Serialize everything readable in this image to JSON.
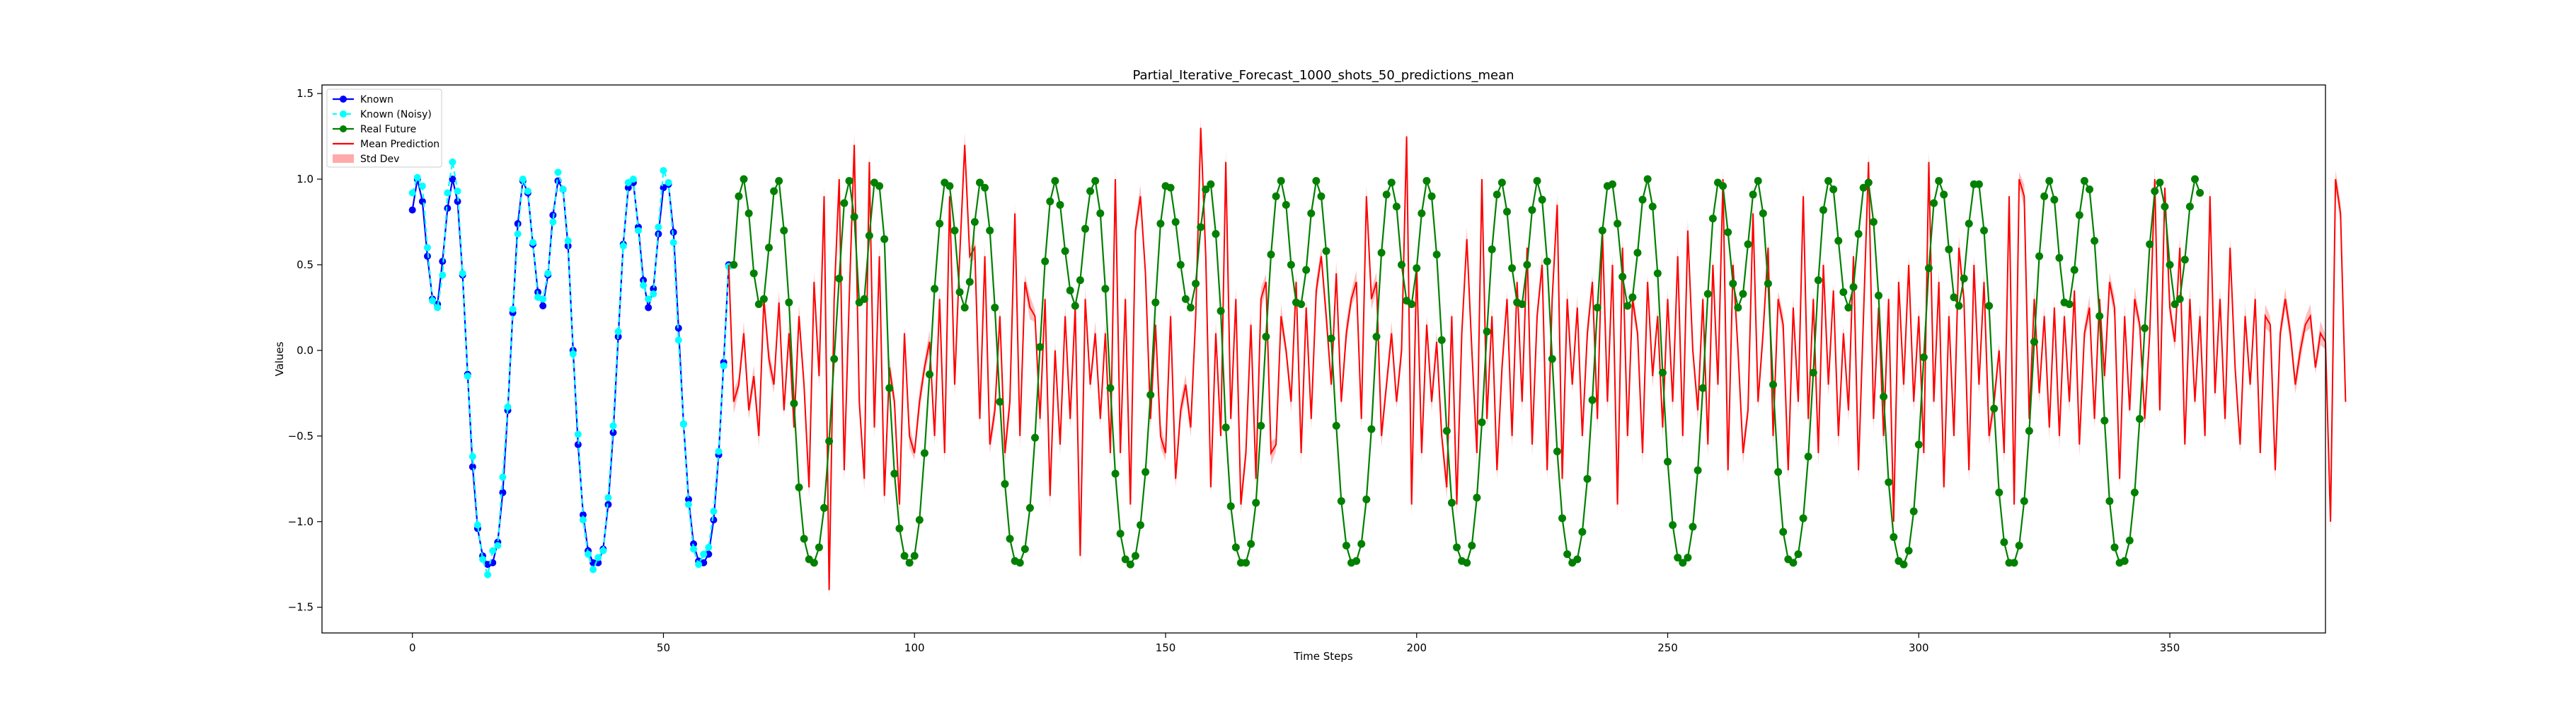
{
  "chart_data": {
    "type": "line",
    "title": "Partial_Iterative_Forecast_1000_shots_50_predictions_mean",
    "xlabel": "Time Steps",
    "ylabel": "Values",
    "xlim": [
      -18,
      381
    ],
    "ylim": [
      -1.65,
      1.55
    ],
    "xticks": [
      0,
      50,
      100,
      150,
      200,
      250,
      300,
      350
    ],
    "yticks": [
      -1.5,
      -1.0,
      -0.5,
      0.0,
      0.5,
      1.0,
      1.5
    ],
    "ytick_labels": [
      "−1.5",
      "−1.0",
      "−0.5",
      "0.0",
      "0.5",
      "1.0",
      "1.5"
    ],
    "grid": false,
    "legend_position": "top-left",
    "legend": [
      {
        "key": "known",
        "label": "Known"
      },
      {
        "key": "noisy",
        "label": "Known (Noisy)"
      },
      {
        "key": "future",
        "label": "Real Future"
      },
      {
        "key": "mean",
        "label": "Mean Prediction"
      },
      {
        "key": "std",
        "label": "Std Dev"
      }
    ],
    "colors": {
      "known": "#0000ff",
      "noisy": "#00ffff",
      "future": "#008000",
      "mean": "#ff0000",
      "std": "#ffaaaa"
    },
    "known": {
      "x_start": 0,
      "values": [
        0.82,
        1.0,
        0.87,
        0.55,
        0.3,
        0.27,
        0.52,
        0.83,
        1.0,
        0.87,
        0.44,
        -0.14,
        -0.68,
        -1.04,
        -1.2,
        -1.25,
        -1.24,
        -1.12,
        -0.83,
        -0.35,
        0.22,
        0.74,
        0.99,
        0.92,
        0.62,
        0.34,
        0.26,
        0.44,
        0.79,
        0.99,
        0.94,
        0.61,
        0.0,
        -0.55,
        -0.96,
        -1.17,
        -1.24,
        -1.24,
        -1.16,
        -0.9,
        -0.48,
        0.08,
        0.62,
        0.95,
        0.98,
        0.72,
        0.41,
        0.25,
        0.36,
        0.68,
        0.95,
        0.97,
        0.69,
        0.13,
        -0.43,
        -0.87,
        -1.13,
        -1.23,
        -1.24,
        -1.19,
        -0.99,
        -0.61,
        -0.07,
        0.5
      ]
    },
    "noisy": {
      "x_start": 0,
      "values": [
        0.92,
        1.01,
        0.96,
        0.6,
        0.29,
        0.25,
        0.44,
        0.92,
        1.1,
        0.93,
        0.45,
        -0.15,
        -0.62,
        -1.02,
        -1.22,
        -1.31,
        -1.17,
        -1.14,
        -0.74,
        -0.33,
        0.24,
        0.68,
        1.0,
        0.93,
        0.63,
        0.31,
        0.3,
        0.45,
        0.75,
        1.04,
        0.94,
        0.64,
        -0.02,
        -0.49,
        -0.99,
        -1.19,
        -1.28,
        -1.21,
        -1.17,
        -0.86,
        -0.44,
        0.11,
        0.61,
        0.98,
        1.0,
        0.7,
        0.38,
        0.3,
        0.33,
        0.72,
        1.05,
        0.98,
        0.63,
        0.06,
        -0.43,
        -0.9,
        -1.16,
        -1.25,
        -1.19,
        -1.15,
        -0.94,
        -0.59,
        -0.09,
        0.49
      ]
    },
    "future": {
      "x_start": 64,
      "values": [
        0.5,
        0.9,
        1.0,
        0.8,
        0.45,
        0.27,
        0.3,
        0.6,
        0.93,
        0.99,
        0.7,
        0.28,
        -0.31,
        -0.8,
        -1.1,
        -1.22,
        -1.24,
        -1.15,
        -0.92,
        -0.53,
        -0.05,
        0.42,
        0.86,
        0.99,
        0.78,
        0.28,
        0.3,
        0.67,
        0.98,
        0.96,
        0.65,
        -0.22,
        -0.72,
        -1.04,
        -1.2,
        -1.24,
        -1.2,
        -0.99,
        -0.6,
        -0.14,
        0.36,
        0.74,
        0.98,
        0.96,
        0.7,
        0.34,
        0.25,
        0.4,
        0.75,
        0.98,
        0.95,
        0.7,
        0.25,
        -0.3,
        -0.78,
        -1.1,
        -1.23,
        -1.24,
        -1.16,
        -0.92,
        -0.51,
        0.02,
        0.52,
        0.87,
        0.99,
        0.85,
        0.58,
        0.35,
        0.26,
        0.41,
        0.71,
        0.93,
        0.99,
        0.8,
        0.36,
        -0.22,
        -0.72,
        -1.07,
        -1.22,
        -1.25,
        -1.2,
        -1.02,
        -0.71,
        -0.26,
        0.28,
        0.74,
        0.96,
        0.95,
        0.75,
        0.5,
        0.3,
        0.25,
        0.39,
        0.72,
        0.94,
        0.97,
        0.68,
        0.23,
        -0.45,
        -0.91,
        -1.15,
        -1.24,
        -1.24,
        -1.13,
        -0.89,
        -0.44,
        0.08,
        0.56,
        0.9,
        0.99,
        0.85,
        0.5,
        0.28,
        0.27,
        0.47,
        0.8,
        0.99,
        0.9,
        0.58,
        0.07,
        -0.44,
        -0.88,
        -1.14,
        -1.24,
        -1.23,
        -1.13,
        -0.87,
        -0.46,
        0.08,
        0.57,
        0.91,
        0.98,
        0.84,
        0.5,
        0.29,
        0.27,
        0.48,
        0.8,
        0.99,
        0.9,
        0.56,
        0.06,
        -0.47,
        -0.89,
        -1.15,
        -1.23,
        -1.24,
        -1.14,
        -0.86,
        -0.42,
        0.11,
        0.59,
        0.91,
        0.98,
        0.81,
        0.48,
        0.28,
        0.27,
        0.5,
        0.82,
        0.99,
        0.88,
        0.52,
        -0.05,
        -0.59,
        -0.98,
        -1.19,
        -1.24,
        -1.22,
        -1.06,
        -0.75,
        -0.29,
        0.25,
        0.7,
        0.96,
        0.97,
        0.74,
        0.43,
        0.26,
        0.31,
        0.57,
        0.88,
        1.0,
        0.84,
        0.45,
        -0.13,
        -0.65,
        -1.02,
        -1.21,
        -1.24,
        -1.21,
        -1.03,
        -0.7,
        -0.22,
        0.33,
        0.77,
        0.98,
        0.96,
        0.69,
        0.39,
        0.25,
        0.33,
        0.62,
        0.91,
        0.99,
        0.8,
        0.39,
        -0.2,
        -0.71,
        -1.06,
        -1.22,
        -1.24,
        -1.19,
        -0.98,
        -0.62,
        -0.13,
        0.41,
        0.82,
        0.99,
        0.94,
        0.64,
        0.34,
        0.25,
        0.37,
        0.68,
        0.95,
        0.98,
        0.75,
        0.32,
        -0.27,
        -0.77,
        -1.09,
        -1.23,
        -1.25,
        -1.17,
        -0.94,
        -0.55,
        -0.04,
        0.48,
        0.86,
        0.99,
        0.91,
        0.59,
        0.31,
        0.26,
        0.42,
        0.74,
        0.97,
        0.97,
        0.7,
        0.26,
        -0.34,
        -0.83,
        -1.12,
        -1.24,
        -1.24,
        -1.14,
        -0.88,
        -0.47,
        0.05,
        0.55,
        0.9,
        0.99,
        0.88,
        0.54,
        0.28,
        0.27,
        0.47,
        0.79,
        0.99,
        0.94,
        0.64,
        0.2,
        -0.41,
        -0.88,
        -1.15,
        -1.24,
        -1.23,
        -1.11,
        -0.83,
        -0.4,
        0.13,
        0.62,
        0.93,
        0.98,
        0.84,
        0.5,
        0.27,
        0.3,
        0.53,
        0.84,
        1.0,
        0.92
      ]
    },
    "mean": {
      "x_start": 63,
      "values": [
        0.5,
        -0.3,
        -0.2,
        0.1,
        -0.35,
        -0.15,
        -0.5,
        0.3,
        -0.05,
        -0.2,
        0.28,
        -0.35,
        0.1,
        -0.45,
        0.2,
        -0.2,
        -0.8,
        0.4,
        -0.15,
        0.9,
        -1.4,
        0.3,
        1.0,
        -0.7,
        0.3,
        1.2,
        -0.3,
        -0.75,
        1.1,
        -0.45,
        0.55,
        -0.85,
        -0.1,
        -0.3,
        -0.9,
        0.1,
        -0.5,
        -0.6,
        -0.3,
        -0.1,
        0.05,
        -0.5,
        0.3,
        -0.6,
        0.9,
        -0.2,
        0.55,
        1.2,
        0.55,
        0.6,
        -0.4,
        0.55,
        -0.55,
        -0.35,
        0.2,
        -0.6,
        -0.3,
        0.8,
        -0.5,
        0.4,
        0.25,
        0.2,
        -0.4,
        0.3,
        -0.85,
        0.0,
        -0.55,
        0.2,
        -0.4,
        0.25,
        -1.2,
        0.3,
        -0.2,
        0.1,
        -0.4,
        0.1,
        -0.6,
        1.0,
        -0.6,
        0.3,
        -0.9,
        0.7,
        0.9,
        0.45,
        -0.4,
        0.15,
        -0.5,
        -0.6,
        0.2,
        -0.75,
        -0.35,
        -0.2,
        -0.45,
        0.2,
        1.3,
        0.55,
        -0.8,
        0.1,
        -0.5,
        1.1,
        -0.4,
        0.3,
        -0.9,
        -0.6,
        0.15,
        -0.75,
        0.3,
        0.4,
        -0.6,
        -0.55,
        0.2,
        0.0,
        -0.3,
        0.4,
        -0.6,
        0.25,
        -0.4,
        0.35,
        0.55,
        0.2,
        -0.2,
        0.45,
        -0.3,
        0.1,
        0.3,
        0.4,
        -0.4,
        0.9,
        0.3,
        0.4,
        -0.5,
        -0.2,
        0.1,
        -0.3,
        0.0,
        1.25,
        -0.9,
        0.5,
        -0.6,
        0.15,
        -0.3,
        0.05,
        -0.5,
        -0.8,
        0.2,
        -0.9,
        0.1,
        0.65,
        0.0,
        -0.6,
        1.0,
        -0.4,
        0.2,
        -0.7,
        -0.1,
        0.3,
        -0.5,
        0.4,
        -0.3,
        0.6,
        -0.55,
        0.2,
        0.5,
        -0.7,
        0.3,
        0.85,
        -0.75,
        0.3,
        -0.2,
        0.25,
        -0.5,
        0.1,
        0.4,
        -0.4,
        0.7,
        -0.3,
        0.5,
        -0.9,
        0.6,
        -0.5,
        0.3,
        0.1,
        -0.6,
        0.4,
        -0.15,
        0.2,
        -0.45,
        0.3,
        -0.3,
        0.55,
        -0.5,
        0.7,
        0.0,
        -0.35,
        0.3,
        -0.55,
        0.5,
        -0.2,
        1.0,
        -0.7,
        0.5,
        0.0,
        -0.6,
        -0.35,
        0.8,
        -0.3,
        0.1,
        0.6,
        -0.5,
        0.3,
        0.15,
        -0.7,
        0.25,
        -0.3,
        0.9,
        -0.4,
        0.3,
        -0.6,
        0.5,
        -0.2,
        0.35,
        -0.5,
        0.1,
        -0.35,
        0.55,
        -0.7,
        0.2,
        1.1,
        -0.4,
        0.25,
        -0.5,
        0.3,
        -1.0,
        0.4,
        -0.2,
        0.5,
        -0.3,
        0.2,
        -0.6,
        1.1,
        -0.3,
        0.4,
        -0.8,
        0.2,
        -0.5,
        0.6,
        0.3,
        -0.7,
        0.5,
        -0.2,
        0.4,
        -0.5,
        -0.3,
        0.0,
        -0.6,
        0.9,
        -0.9,
        1.0,
        0.9,
        -0.4,
        0.3,
        -0.25,
        0.2,
        -0.45,
        0.25,
        -0.5,
        0.2,
        -0.3,
        0.35,
        -0.55,
        0.1,
        0.25,
        -0.4,
        0.3,
        -0.15,
        0.4,
        0.25,
        -0.75,
        0.2,
        -0.35,
        0.3,
        0.15,
        -0.4,
        0.1,
        1.0,
        -0.35,
        0.95,
        0.25,
        0.05,
        0.6,
        -0.55,
        0.3,
        -0.3,
        0.2,
        -0.5,
        0.9,
        -0.25,
        0.3,
        -0.4,
        0.6,
        -0.1,
        -0.55,
        0.2,
        -0.2,
        0.3,
        -0.6,
        0.2,
        0.15,
        -0.7,
        0.1,
        0.3,
        0.1,
        -0.2,
        0.0,
        0.15,
        0.2,
        -0.1,
        0.1,
        0.05,
        -1.0,
        1.0,
        0.8,
        -0.3
      ]
    }
  }
}
